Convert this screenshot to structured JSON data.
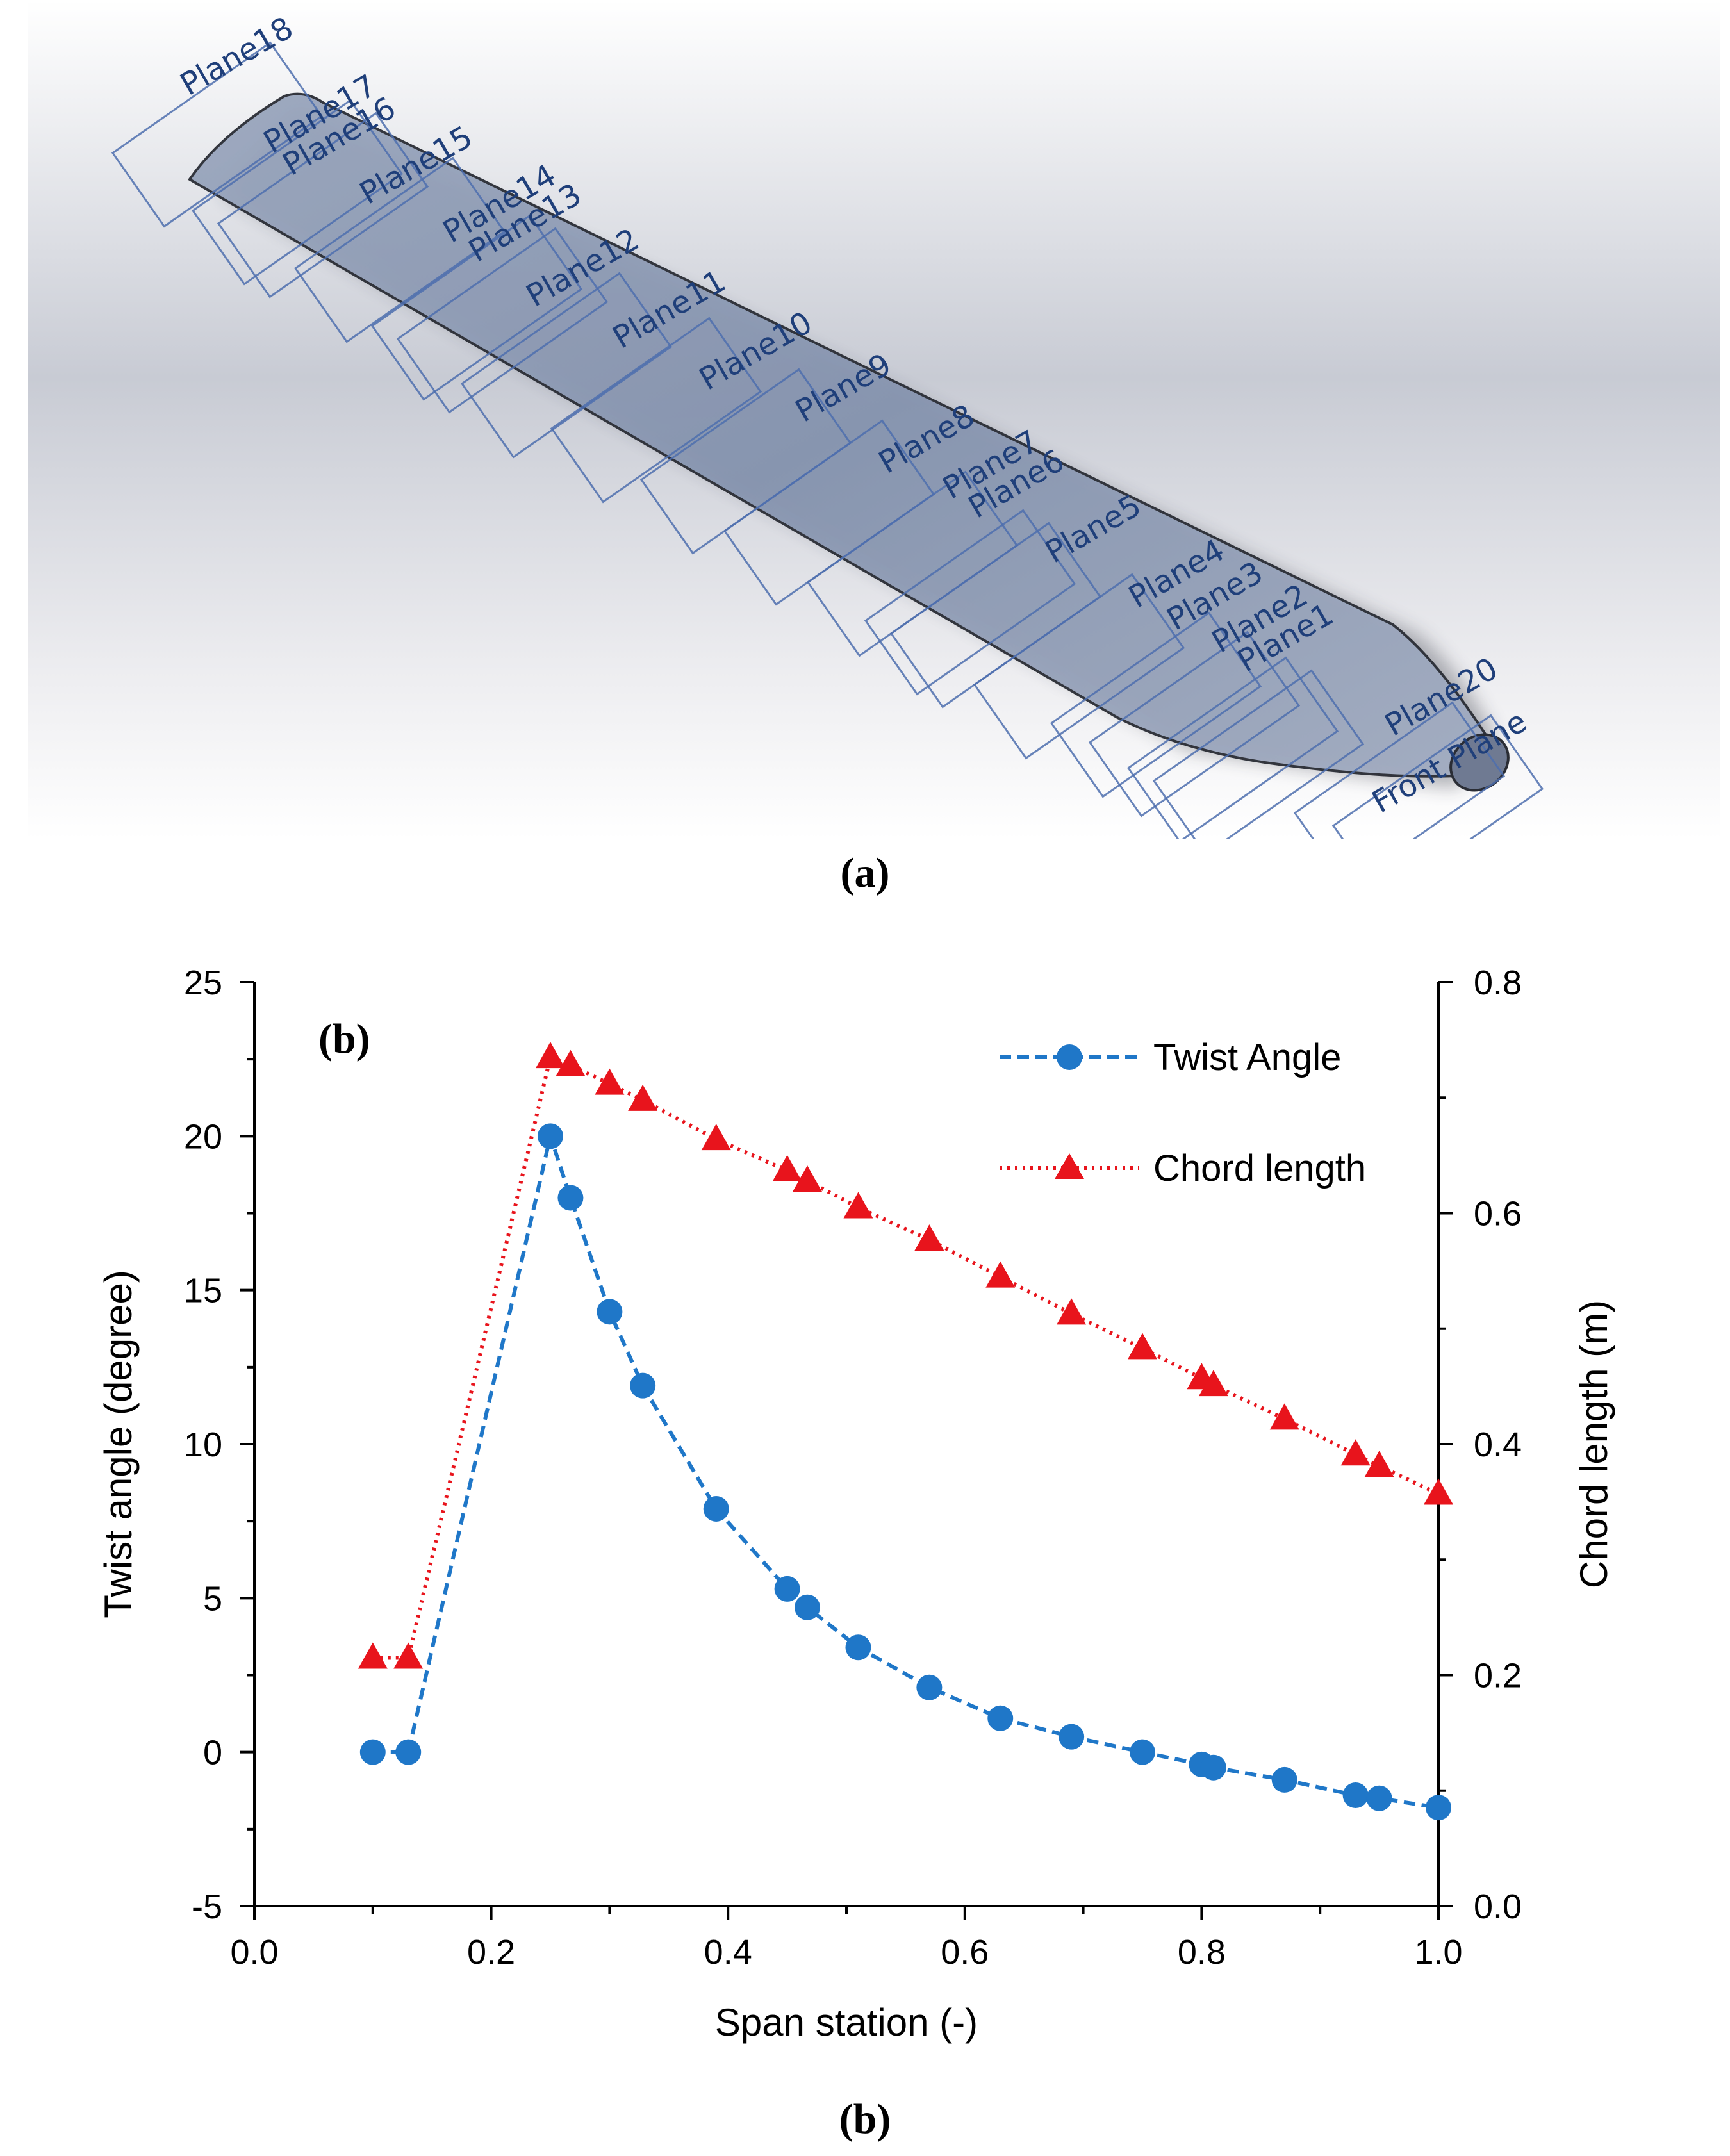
{
  "panel_a": {
    "caption": "(a)",
    "colors": {
      "blade": "#8d9bb5",
      "plane_outline": "#4d6fae",
      "plane_label": "#1f3f7a"
    },
    "planes": [
      "Plane18",
      "Plane17",
      "Plane16",
      "Plane15",
      "Plane14",
      "Plane13",
      "Plane12",
      "Plane11",
      "Plane10",
      "Plane9",
      "Plane8",
      "Plane7",
      "Plane6",
      "Plane5",
      "Plane4",
      "Plane3",
      "Plane2",
      "Plane1",
      "Plane20",
      "Front Plane"
    ]
  },
  "panel_b": {
    "caption": "(b)",
    "inset_label": "(b)"
  },
  "chart_data": {
    "type": "line",
    "xlabel": "Span station (-)",
    "ylabel": "Twist angle (degree)",
    "y2label": "Chord length (m)",
    "xlim": [
      0.0,
      1.0
    ],
    "ylim": [
      -5,
      25
    ],
    "y2lim": [
      0.0,
      0.8
    ],
    "xticks": [
      "0.0",
      "0.2",
      "0.4",
      "0.6",
      "0.8",
      "1.0"
    ],
    "yticks": [
      "-5",
      "0",
      "5",
      "10",
      "15",
      "20",
      "25"
    ],
    "y2ticks": [
      "0.0",
      "0.2",
      "0.4",
      "0.6",
      "0.8"
    ],
    "legend_position": "top-right",
    "series": [
      {
        "name": "Twist Angle",
        "axis": "left",
        "color": "#1f77c8",
        "marker": "circle",
        "linestyle": "dashed",
        "x": [
          0.1,
          0.13,
          0.25,
          0.267,
          0.3,
          0.328,
          0.39,
          0.45,
          0.467,
          0.51,
          0.57,
          0.63,
          0.69,
          0.75,
          0.8,
          0.81,
          0.87,
          0.93,
          0.95,
          1.0
        ],
        "y": [
          0.0,
          0.0,
          20.0,
          18.0,
          14.3,
          11.9,
          7.9,
          5.3,
          4.7,
          3.4,
          2.1,
          1.1,
          0.5,
          0.0,
          -0.4,
          -0.5,
          -0.9,
          -1.4,
          -1.5,
          -1.8
        ]
      },
      {
        "name": "Chord length",
        "axis": "right",
        "color": "#e8141c",
        "marker": "triangle",
        "linestyle": "dotted",
        "x": [
          0.1,
          0.13,
          0.25,
          0.267,
          0.3,
          0.328,
          0.39,
          0.45,
          0.467,
          0.51,
          0.57,
          0.63,
          0.69,
          0.75,
          0.8,
          0.81,
          0.87,
          0.93,
          0.95,
          1.0
        ],
        "y": [
          0.215,
          0.215,
          0.735,
          0.728,
          0.712,
          0.698,
          0.664,
          0.637,
          0.628,
          0.605,
          0.577,
          0.545,
          0.513,
          0.483,
          0.457,
          0.451,
          0.422,
          0.391,
          0.381,
          0.357
        ]
      }
    ]
  }
}
